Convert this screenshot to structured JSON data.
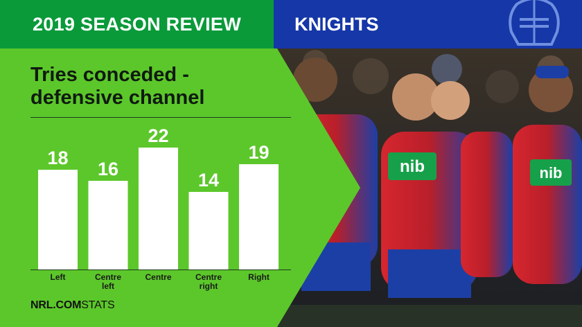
{
  "header": {
    "left_title": "2019 SEASON REVIEW",
    "team_name": "KNIGHTS"
  },
  "footer": {
    "brand_bold": "NRL.COM",
    "brand_light": "STATS"
  },
  "colors": {
    "green_header": "#0a9a3a",
    "green_panel": "#5cc72b",
    "blue_header": "#1637a8",
    "bar": "#ffffff",
    "value_text": "#ffffff"
  },
  "chart_data": {
    "type": "bar",
    "title": "Tries conceded - defensive channel",
    "title_lines": [
      "Tries conceded -",
      "defensive channel"
    ],
    "categories": [
      "Left",
      "Centre left",
      "Centre",
      "Centre right",
      "Right"
    ],
    "category_lines": [
      [
        "Left"
      ],
      [
        "Centre",
        "left"
      ],
      [
        "Centre"
      ],
      [
        "Centre",
        "right"
      ],
      [
        "Right"
      ]
    ],
    "values": [
      18,
      16,
      22,
      14,
      19
    ],
    "data_labels": true,
    "ylim": [
      0,
      22
    ],
    "grid": false,
    "legend": "none"
  }
}
